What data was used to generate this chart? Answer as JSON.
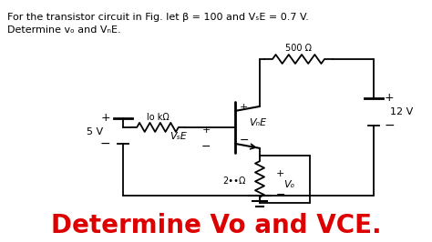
{
  "bg_color": "#ffffff",
  "title_text": "Determine Vo and VCE.",
  "title_color": "#dd0000",
  "title_fontsize": 20,
  "header_line1": "For the transistor circuit in Fig. let β = 100 and VₛE = 0.7 V.",
  "header_line2": "Determine vₒ and VₙE.",
  "header_fontsize": 8.5,
  "resistor_top": "500 Ω",
  "resistor_base": "lo kΩ",
  "resistor_emitter": "2••Ω",
  "voltage_supply": "5 V",
  "voltage_vcc": "12 V"
}
